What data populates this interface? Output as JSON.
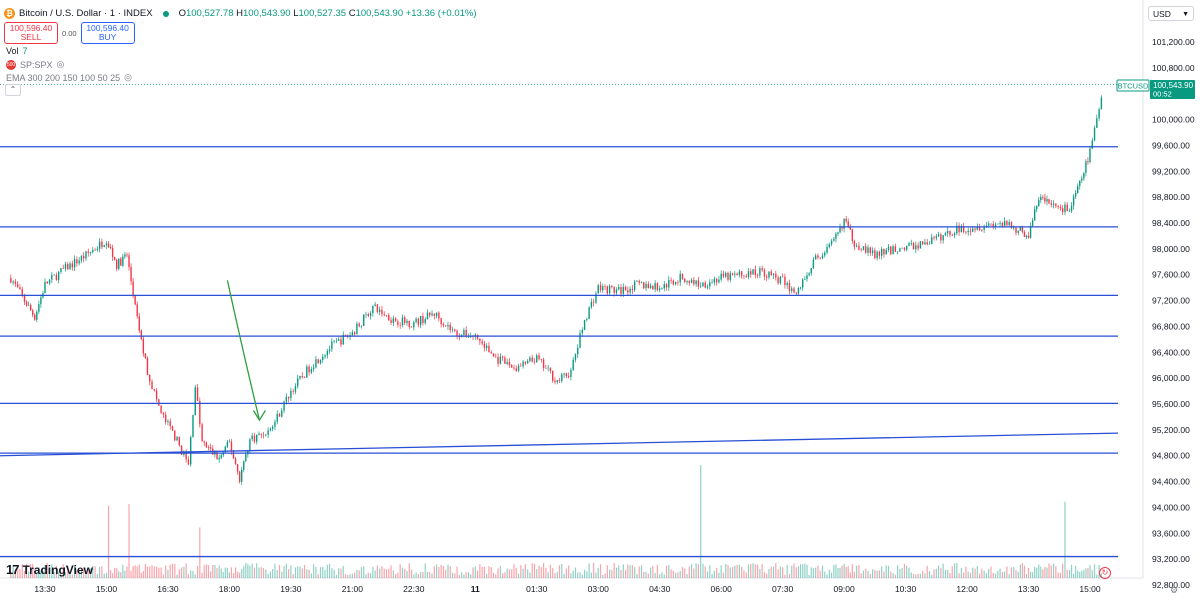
{
  "legend": {
    "symbol_title": "Bitcoin / U.S. Dollar · 1 · INDEX",
    "coin_glyph": "₿",
    "ohlc": [
      {
        "k": "O",
        "v": "100,527.78"
      },
      {
        "k": "H",
        "v": "100,543.90"
      },
      {
        "k": "L",
        "v": "100,527.35"
      },
      {
        "k": "C",
        "v": "100,543.90"
      },
      {
        "k": "",
        "v": "+13.36 (+0.01%)"
      }
    ],
    "sell_price": "100,596.40",
    "sell_label": "SELL",
    "spread": "0.00",
    "buy_price": "100,596.40",
    "buy_label": "BUY"
  },
  "indicators": {
    "vol_label": "Vol",
    "vol_value": "7",
    "spx_label": "SP:SPX",
    "ema_label": "EMA 300 200 150 100 50 25"
  },
  "currency": "USD",
  "branding": "TradingView",
  "price_tag": {
    "symbol": "BTCUSD",
    "price": "100,543.90",
    "countdown": "00:52"
  },
  "colors": {
    "up": "#089981",
    "down": "#f23645",
    "hline": "#2a4fd6",
    "annotation": "#2e9e3f",
    "tag": "#089981"
  },
  "chart_data": {
    "type": "candlestick",
    "title": "Bitcoin / U.S. Dollar · 1 · INDEX",
    "x_ticks": [
      "13:30",
      "15:00",
      "16:30",
      "18:00",
      "19:30",
      "21:00",
      "22:30",
      "11",
      "01:30",
      "03:00",
      "04:30",
      "06:00",
      "07:30",
      "09:00",
      "10:30",
      "12:00",
      "13:30",
      "15:00"
    ],
    "y_ticks": [
      101200,
      100800,
      100000,
      99600,
      99200,
      98800,
      98400,
      98000,
      97600,
      97200,
      96800,
      96400,
      96000,
      95600,
      95200,
      94800,
      94400,
      94000,
      93600,
      93200,
      92800
    ],
    "ylim": [
      92750,
      101450
    ],
    "horizontal_levels": [
      99580,
      98340,
      97280,
      96650,
      95610,
      94840,
      93240
    ],
    "trendline": {
      "start": {
        "x": "12:40",
        "y": 94800
      },
      "end": {
        "x": "15:20",
        "y": 95150
      }
    },
    "price_path": [
      {
        "t": "12:40",
        "p": 97550
      },
      {
        "t": "13:00",
        "p": 97200
      },
      {
        "t": "13:15",
        "p": 96950
      },
      {
        "t": "13:30",
        "p": 97450
      },
      {
        "t": "14:00",
        "p": 97700
      },
      {
        "t": "14:30",
        "p": 97900
      },
      {
        "t": "15:00",
        "p": 98150
      },
      {
        "t": "15:15",
        "p": 97750
      },
      {
        "t": "15:30",
        "p": 97900
      },
      {
        "t": "15:45",
        "p": 96900
      },
      {
        "t": "16:00",
        "p": 96100
      },
      {
        "t": "16:20",
        "p": 95450
      },
      {
        "t": "16:40",
        "p": 95100
      },
      {
        "t": "17:00",
        "p": 94650
      },
      {
        "t": "17:10",
        "p": 95900
      },
      {
        "t": "17:20",
        "p": 95000
      },
      {
        "t": "17:45",
        "p": 94750
      },
      {
        "t": "18:00",
        "p": 95000
      },
      {
        "t": "18:15",
        "p": 94450
      },
      {
        "t": "18:30",
        "p": 95050
      },
      {
        "t": "19:00",
        "p": 95200
      },
      {
        "t": "19:30",
        "p": 95800
      },
      {
        "t": "20:00",
        "p": 96200
      },
      {
        "t": "20:30",
        "p": 96500
      },
      {
        "t": "21:00",
        "p": 96700
      },
      {
        "t": "21:30",
        "p": 97100
      },
      {
        "t": "22:00",
        "p": 96900
      },
      {
        "t": "22:30",
        "p": 96850
      },
      {
        "t": "23:00",
        "p": 97000
      },
      {
        "t": "23:30",
        "p": 96700
      },
      {
        "t": "00:00",
        "p": 96650
      },
      {
        "t": "00:30",
        "p": 96300
      },
      {
        "t": "01:00",
        "p": 96150
      },
      {
        "t": "01:30",
        "p": 96300
      },
      {
        "t": "02:00",
        "p": 95950
      },
      {
        "t": "02:20",
        "p": 96100
      },
      {
        "t": "02:40",
        "p": 96900
      },
      {
        "t": "03:00",
        "p": 97400
      },
      {
        "t": "03:30",
        "p": 97350
      },
      {
        "t": "04:00",
        "p": 97450
      },
      {
        "t": "04:30",
        "p": 97400
      },
      {
        "t": "05:00",
        "p": 97550
      },
      {
        "t": "05:30",
        "p": 97450
      },
      {
        "t": "06:00",
        "p": 97550
      },
      {
        "t": "06:30",
        "p": 97600
      },
      {
        "t": "07:00",
        "p": 97650
      },
      {
        "t": "07:30",
        "p": 97500
      },
      {
        "t": "07:50",
        "p": 97300
      },
      {
        "t": "08:15",
        "p": 97800
      },
      {
        "t": "08:45",
        "p": 98100
      },
      {
        "t": "09:00",
        "p": 98450
      },
      {
        "t": "09:15",
        "p": 98100
      },
      {
        "t": "09:45",
        "p": 97900
      },
      {
        "t": "10:15",
        "p": 98000
      },
      {
        "t": "10:45",
        "p": 98050
      },
      {
        "t": "11:15",
        "p": 98150
      },
      {
        "t": "11:45",
        "p": 98300
      },
      {
        "t": "12:15",
        "p": 98350
      },
      {
        "t": "12:45",
        "p": 98400
      },
      {
        "t": "13:15",
        "p": 98300
      },
      {
        "t": "13:30",
        "p": 98200
      },
      {
        "t": "13:45",
        "p": 98800
      },
      {
        "t": "14:00",
        "p": 98700
      },
      {
        "t": "14:30",
        "p": 98600
      },
      {
        "t": "14:45",
        "p": 99000
      },
      {
        "t": "15:00",
        "p": 99500
      },
      {
        "t": "15:10",
        "p": 100000
      },
      {
        "t": "15:20",
        "p": 100544
      }
    ],
    "annotation": "hand-drawn green arrow pointing down toward the 18:00 low"
  }
}
